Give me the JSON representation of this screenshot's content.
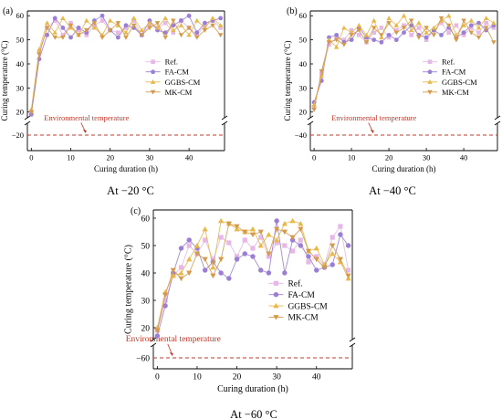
{
  "charts": [
    {
      "panel_label": "(a)",
      "caption": "At −20 °C",
      "env_temp": -20,
      "env_label": "Environmental temperature",
      "env_label_x": 14,
      "y_ticks": [
        -20,
        20,
        30,
        40,
        50,
        60
      ],
      "ytick_label_extra": [
        "−"
      ],
      "main_range": [
        18,
        62
      ],
      "low_range": [
        -22,
        -18
      ],
      "x_ticks": [
        0,
        10,
        20,
        30,
        40
      ],
      "xlim": [
        -1,
        49
      ],
      "legend_pos": "right-center"
    },
    {
      "panel_label": "(b)",
      "caption": "At −40 °C",
      "env_temp": -40,
      "env_label": "Environmental temperature",
      "env_label_x": 16,
      "y_ticks": [
        -40,
        20,
        30,
        40,
        50,
        60
      ],
      "main_range": [
        18,
        62
      ],
      "low_range": [
        -42,
        -38
      ],
      "x_ticks": [
        0,
        10,
        20,
        30,
        40
      ],
      "xlim": [
        -1,
        49
      ],
      "legend_pos": "right-center"
    },
    {
      "panel_label": "(c)",
      "caption": "At −60 °C",
      "env_temp": -60,
      "env_label": "Environmental temperature",
      "env_label_x": 4,
      "y_ticks": [
        -60,
        20,
        30,
        40,
        50,
        60
      ],
      "main_range": [
        16,
        63
      ],
      "low_range": [
        -62,
        -58
      ],
      "x_ticks": [
        0,
        10,
        20,
        30,
        40
      ],
      "xlim": [
        -1,
        49
      ],
      "legend_pos": "right-center"
    }
  ],
  "common": {
    "xlabel": "Curing duration (h)",
    "ylabel": "Curing temperature (°C)",
    "legend": [
      "Ref.",
      "FA-CM",
      "GGBS-CM",
      "MK-CM"
    ],
    "colors": {
      "ref": "#e6b8e6",
      "fa": "#9b7fd4",
      "ggbs": "#e8b84a",
      "mk": "#d49a4a",
      "env": "#c0392b",
      "axis": "#000000"
    }
  },
  "chart_data": [
    {
      "type": "line",
      "title": "",
      "xlabel": "Curing duration (h)",
      "ylabel": "Curing temperature (°C)",
      "x": [
        0,
        2,
        4,
        6,
        8,
        10,
        12,
        14,
        16,
        18,
        20,
        22,
        24,
        26,
        28,
        30,
        32,
        34,
        36,
        38,
        40,
        42,
        44,
        46,
        48
      ],
      "series": [
        {
          "name": "Ref.",
          "values": [
            20,
            45,
            55,
            58,
            52,
            57,
            54,
            52,
            56,
            58,
            54,
            53,
            55,
            58,
            52,
            56,
            55,
            57,
            53,
            58,
            55,
            52,
            56,
            58,
            55
          ]
        },
        {
          "name": "FA-CM",
          "values": [
            19,
            42,
            52,
            59,
            55,
            51,
            55,
            53,
            58,
            60,
            54,
            51,
            56,
            55,
            52,
            58,
            54,
            53,
            56,
            58,
            60,
            53,
            57,
            58,
            59
          ]
        },
        {
          "name": "GGBS-CM",
          "values": [
            21,
            46,
            57,
            53,
            59,
            55,
            52,
            58,
            55,
            52,
            58,
            56,
            53,
            59,
            54,
            57,
            55,
            59,
            54,
            56,
            52,
            58,
            55,
            59,
            56
          ]
        },
        {
          "name": "MK-CM",
          "values": [
            20,
            44,
            55,
            51,
            51,
            56,
            52,
            54,
            57,
            51,
            54,
            57,
            51,
            56,
            52,
            55,
            57,
            51,
            58,
            52,
            55,
            51,
            54,
            56,
            52
          ]
        }
      ],
      "env_temperature": -20,
      "xlim": [
        -1,
        49
      ],
      "ylim": [
        -22,
        62
      ],
      "axis_break": [
        -18,
        18
      ]
    },
    {
      "type": "line",
      "title": "",
      "xlabel": "Curing duration (h)",
      "ylabel": "Curing temperature (°C)",
      "x": [
        0,
        2,
        4,
        6,
        8,
        10,
        12,
        14,
        16,
        18,
        20,
        22,
        24,
        26,
        28,
        30,
        32,
        34,
        36,
        38,
        40,
        42,
        44,
        46,
        48
      ],
      "series": [
        {
          "name": "Ref.",
          "values": [
            22,
            36,
            48,
            51,
            50,
            54,
            52,
            49,
            53,
            55,
            51,
            54,
            56,
            52,
            55,
            50,
            54,
            57,
            53,
            56,
            52,
            55,
            53,
            57,
            55
          ]
        },
        {
          "name": "FA-CM",
          "values": [
            24,
            33,
            51,
            52,
            49,
            50,
            55,
            51,
            50,
            49,
            52,
            50,
            53,
            56,
            52,
            51,
            54,
            52,
            55,
            51,
            53,
            56,
            57,
            54,
            56
          ]
        },
        {
          "name": "GGBS-CM",
          "values": [
            23,
            35,
            50,
            47,
            55,
            53,
            56,
            52,
            58,
            51,
            59,
            56,
            60,
            54,
            57,
            53,
            55,
            58,
            60,
            52,
            56,
            58,
            55,
            59,
            57
          ]
        },
        {
          "name": "MK-CM",
          "values": [
            21,
            37,
            49,
            50,
            48,
            52,
            54,
            49,
            55,
            52,
            57,
            53,
            55,
            58,
            51,
            55,
            52,
            59,
            56,
            50,
            58,
            53,
            51,
            55,
            49
          ]
        }
      ],
      "env_temperature": -40,
      "xlim": [
        -1,
        49
      ],
      "ylim": [
        -42,
        62
      ],
      "axis_break": [
        -38,
        18
      ]
    },
    {
      "type": "line",
      "title": "",
      "xlabel": "Curing duration (h)",
      "ylabel": "Curing temperature (°C)",
      "x": [
        0,
        2,
        4,
        6,
        8,
        10,
        12,
        14,
        16,
        18,
        20,
        22,
        24,
        26,
        28,
        30,
        32,
        34,
        36,
        38,
        40,
        42,
        44,
        46,
        48
      ],
      "series": [
        {
          "name": "Ref.",
          "values": [
            19,
            30,
            39,
            42,
            50,
            47,
            52,
            45,
            53,
            51,
            46,
            52,
            49,
            53,
            46,
            51,
            50,
            48,
            52,
            44,
            46,
            43,
            53,
            57,
            41
          ]
        },
        {
          "name": "FA-CM",
          "values": [
            17,
            28,
            40,
            49,
            52,
            49,
            41,
            44,
            40,
            38,
            45,
            47,
            46,
            41,
            40,
            59,
            40,
            52,
            50,
            46,
            41,
            42,
            43,
            54,
            50
          ]
        },
        {
          "name": "GGBS-CM",
          "values": [
            20,
            33,
            39,
            40,
            45,
            50,
            56,
            42,
            59,
            58,
            56,
            55,
            56,
            50,
            54,
            52,
            58,
            59,
            58,
            48,
            49,
            43,
            47,
            44,
            38
          ]
        },
        {
          "name": "MK-CM",
          "values": [
            19,
            32,
            41,
            38,
            40,
            47,
            45,
            39,
            45,
            58,
            57,
            55,
            54,
            55,
            47,
            56,
            55,
            53,
            56,
            48,
            45,
            42,
            50,
            45,
            39
          ]
        }
      ],
      "env_temperature": -60,
      "xlim": [
        -1,
        49
      ],
      "ylim": [
        -62,
        63
      ],
      "axis_break": [
        -58,
        16
      ]
    }
  ]
}
